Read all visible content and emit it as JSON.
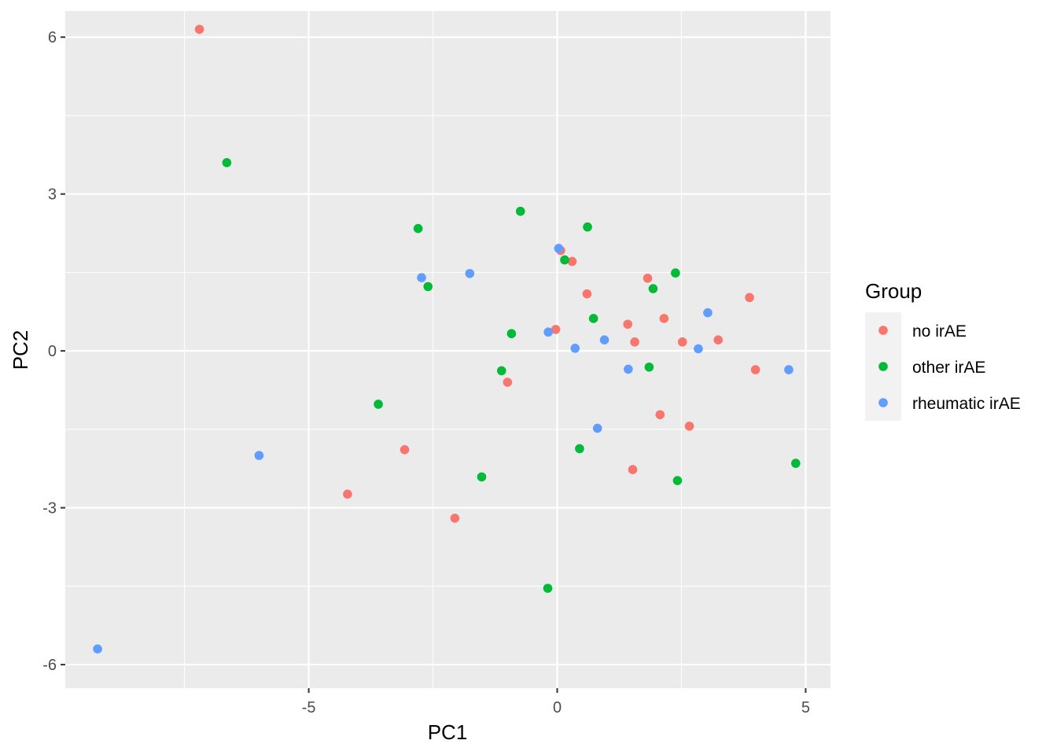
{
  "chart_data": {
    "type": "scatter",
    "xlabel": "PC1",
    "ylabel": "PC2",
    "xlim": [
      -9.9,
      5.5
    ],
    "ylim": [
      -6.45,
      6.5
    ],
    "xticks": [
      -5,
      0,
      5
    ],
    "xtick_labels": [
      "-5",
      "0",
      "5"
    ],
    "yticks": [
      -6,
      -3,
      0,
      3,
      6
    ],
    "ytick_labels": [
      "-6",
      "-3",
      "0",
      "3",
      "6"
    ],
    "grid": true,
    "legend": {
      "title": "Group",
      "position": "right"
    },
    "series": [
      {
        "name": "no irAE",
        "color": "#F8766D",
        "points": [
          [
            -7.2,
            6.15
          ],
          [
            0.07,
            1.92
          ],
          [
            0.3,
            1.71
          ],
          [
            1.82,
            1.39
          ],
          [
            0.6,
            1.09
          ],
          [
            3.87,
            1.02
          ],
          [
            2.15,
            0.62
          ],
          [
            1.42,
            0.51
          ],
          [
            -0.03,
            0.41
          ],
          [
            1.56,
            0.17
          ],
          [
            2.52,
            0.17
          ],
          [
            3.24,
            0.21
          ],
          [
            3.99,
            -0.36
          ],
          [
            -1.0,
            -0.6
          ],
          [
            2.07,
            -1.22
          ],
          [
            2.66,
            -1.44
          ],
          [
            -3.07,
            -1.89
          ],
          [
            1.52,
            -2.27
          ],
          [
            -4.22,
            -2.74
          ],
          [
            -2.06,
            -3.2
          ]
        ]
      },
      {
        "name": "other irAE",
        "color": "#00BA38",
        "points": [
          [
            -6.65,
            3.6
          ],
          [
            -0.74,
            2.67
          ],
          [
            0.61,
            2.37
          ],
          [
            -2.8,
            2.34
          ],
          [
            0.15,
            1.74
          ],
          [
            2.38,
            1.49
          ],
          [
            -2.6,
            1.23
          ],
          [
            1.93,
            1.19
          ],
          [
            0.73,
            0.62
          ],
          [
            -0.92,
            0.33
          ],
          [
            1.85,
            -0.31
          ],
          [
            -1.12,
            -0.38
          ],
          [
            -3.6,
            -1.02
          ],
          [
            0.45,
            -1.87
          ],
          [
            4.8,
            -2.15
          ],
          [
            -1.52,
            -2.41
          ],
          [
            2.42,
            -2.48
          ],
          [
            -0.19,
            -4.54
          ]
        ]
      },
      {
        "name": "rheumatic irAE",
        "color": "#619CFF",
        "points": [
          [
            0.03,
            1.96
          ],
          [
            -1.76,
            1.48
          ],
          [
            -2.73,
            1.4
          ],
          [
            3.03,
            0.73
          ],
          [
            -0.18,
            0.36
          ],
          [
            0.95,
            0.21
          ],
          [
            0.36,
            0.05
          ],
          [
            2.84,
            0.04
          ],
          [
            1.43,
            -0.35
          ],
          [
            4.66,
            -0.36
          ],
          [
            0.81,
            -1.48
          ],
          [
            -6.0,
            -2.0
          ],
          [
            -9.25,
            -5.7
          ]
        ]
      }
    ]
  }
}
